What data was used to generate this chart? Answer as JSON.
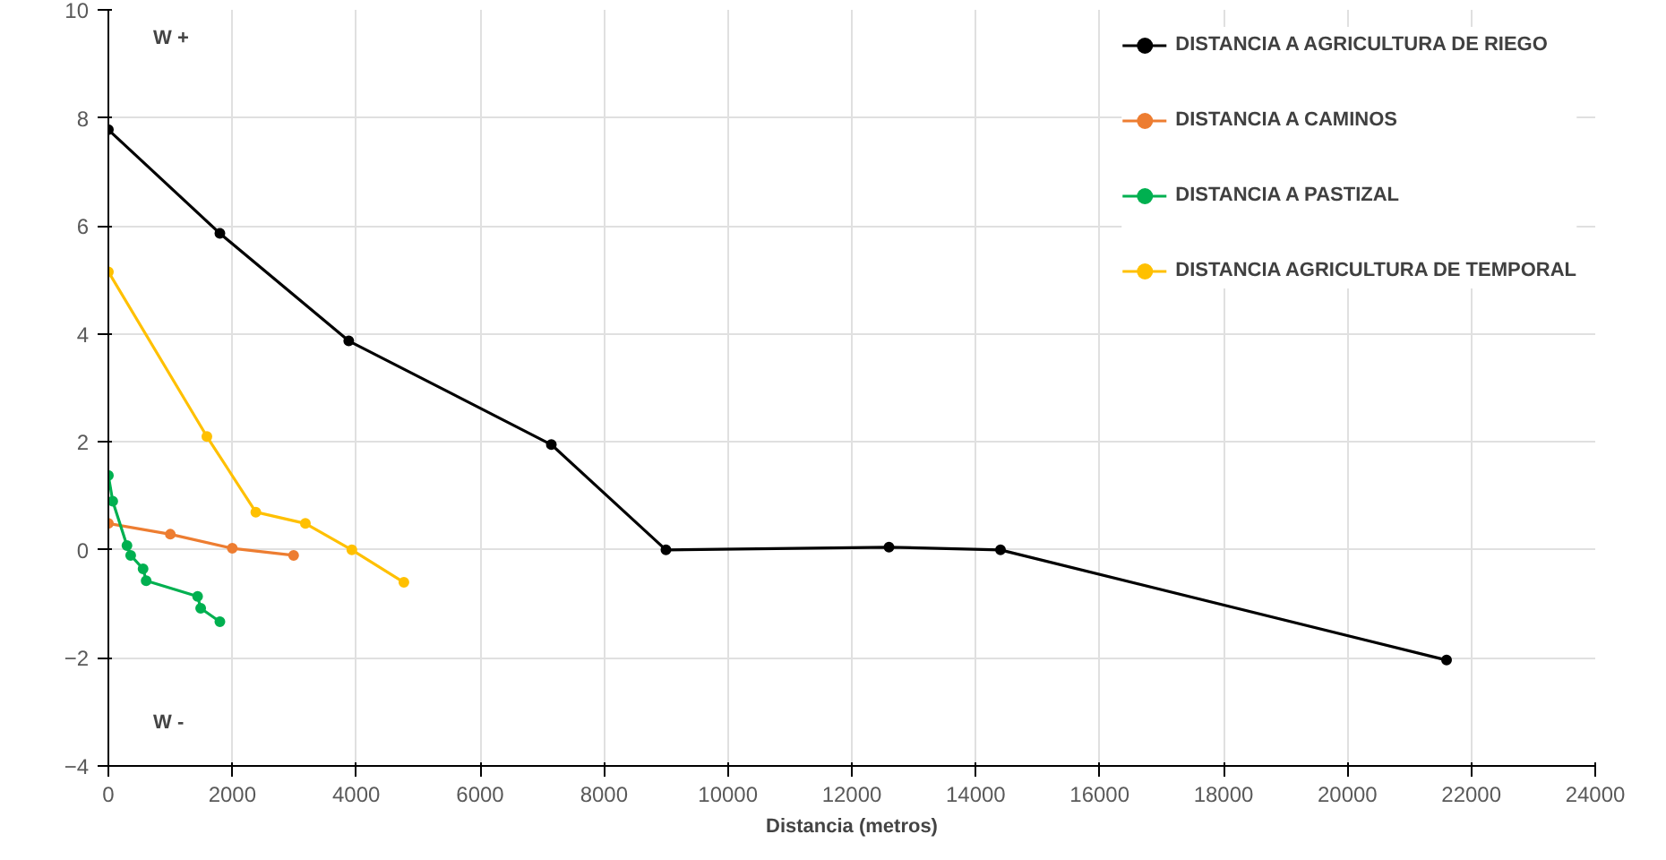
{
  "chart_data": {
    "type": "line",
    "xlabel": "Distancia (metros)",
    "ylabel": "W +",
    "annotations": [
      "W -"
    ],
    "xlim": [
      0,
      24000
    ],
    "xticks": [
      0,
      2000,
      4000,
      6000,
      8000,
      10000,
      12000,
      14000,
      16000,
      18000,
      20000,
      22000,
      24000
    ],
    "ylim": [
      -4,
      10
    ],
    "yticks": [
      -4,
      -2,
      0,
      2,
      4,
      6,
      8,
      10
    ],
    "grid": true,
    "legend": "top right",
    "marker": "circle",
    "line_style": "solid",
    "series": [
      {
        "name": "DISTANCIA A AGRICULTURA DE RIEGO",
        "color": "#000000",
        "x": [
          0,
          1800,
          3880,
          7150,
          9000,
          12600,
          14400,
          21600
        ],
        "values": [
          7.78,
          5.86,
          3.87,
          1.95,
          0,
          0.05,
          0,
          -2.04
        ]
      },
      {
        "name": "DISTANCIA A CAMINOS",
        "color": "#ed7d31",
        "x": [
          0,
          1000,
          2000,
          2990
        ],
        "values": [
          0.49,
          0.29,
          0.03,
          -0.1
        ]
      },
      {
        "name": "DISTANCIA A PASTIZAL",
        "color": "#00b050",
        "x": [
          0,
          70,
          300,
          360,
          560,
          610,
          1440,
          1490,
          1800
        ],
        "values": [
          1.38,
          0.9,
          0.08,
          -0.1,
          -0.35,
          -0.57,
          -0.86,
          -1.08,
          -1.33
        ]
      },
      {
        "name": "DISTANCIA AGRICULTURA DE TEMPORAL",
        "color": "#ffc000",
        "x": [
          0,
          1590,
          2380,
          3180,
          3930,
          4770
        ],
        "values": [
          5.15,
          2.1,
          0.7,
          0.49,
          0,
          -0.6
        ]
      }
    ]
  }
}
